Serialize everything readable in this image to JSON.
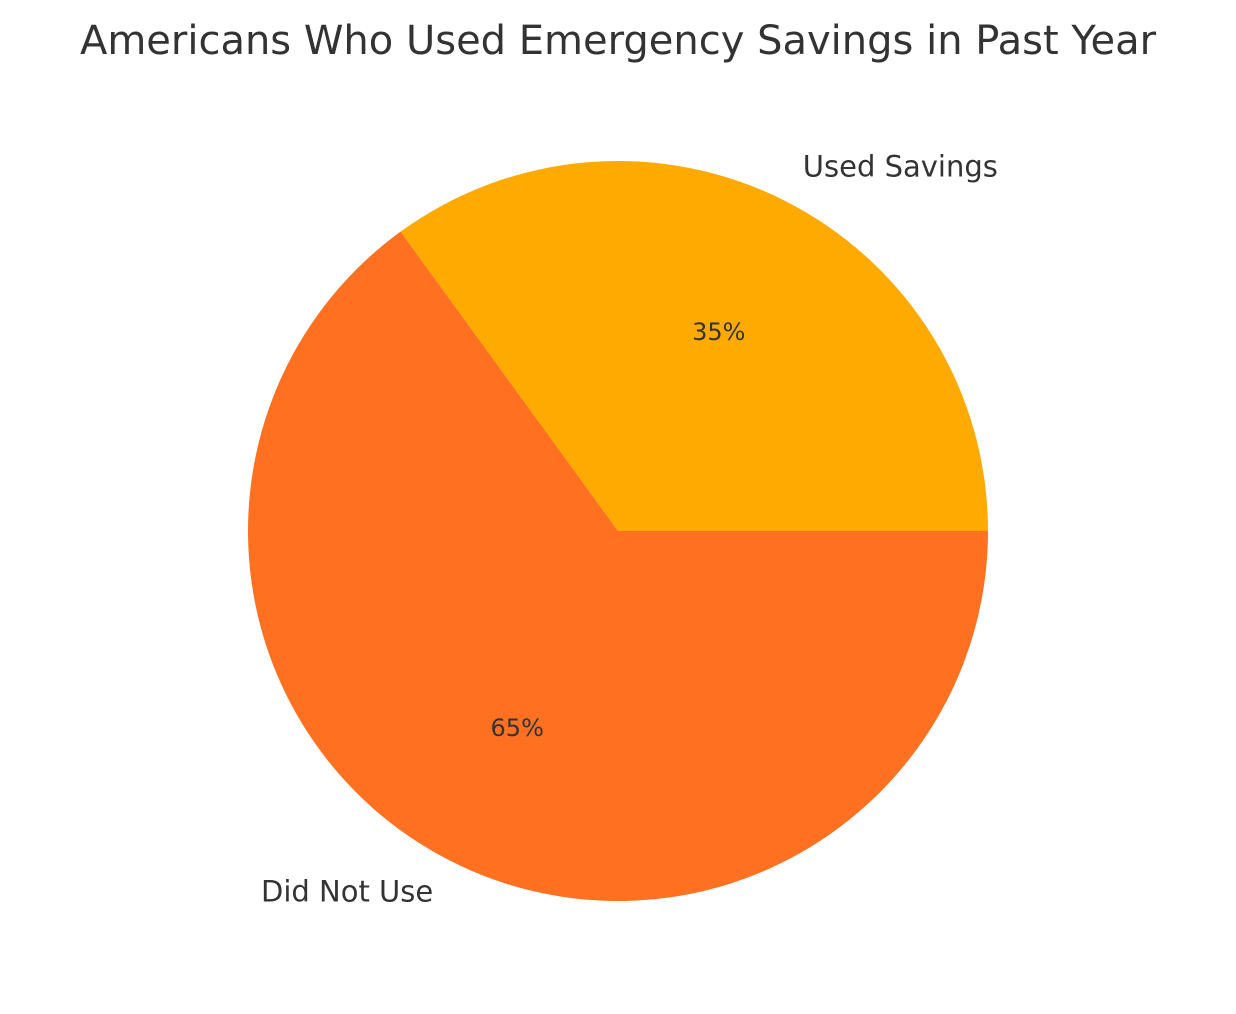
{
  "chart_data": {
    "type": "pie",
    "title": "Americans Who Used Emergency Savings in Past Year",
    "slices": [
      {
        "label": "Used Savings",
        "value": 35,
        "pct_label": "35%",
        "color": "#FFAA00"
      },
      {
        "label": "Did Not Use",
        "value": 65,
        "pct_label": "65%",
        "color": "#FF7020"
      }
    ],
    "start_angle_deg": 0,
    "direction": "counterclockwise",
    "legend": "none"
  }
}
